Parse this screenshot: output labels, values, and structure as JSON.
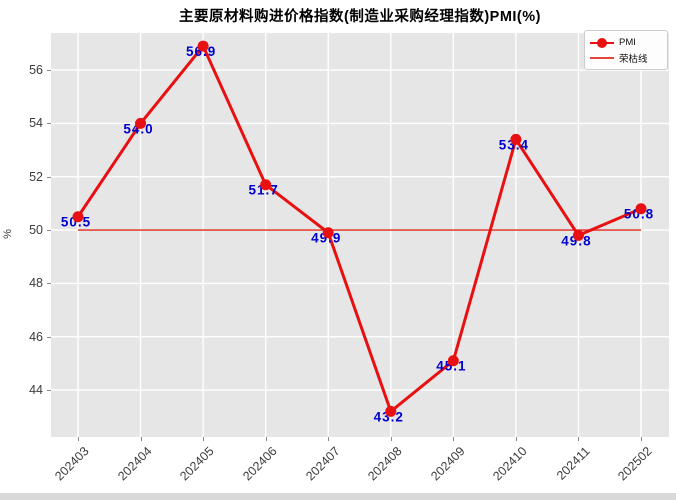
{
  "title": "主要原材料购进价格指数(制造业采购经理指数)PMI(%)",
  "y_axis_label": "%",
  "legend": {
    "pmi_label": "PMI",
    "reference_label": "荣枯线"
  },
  "colors": {
    "pmi_line": "#e81010",
    "reference_line": "#e3453c",
    "data_label": "#0000cc",
    "plot_background": "#e6e6e6",
    "gridline": "#ffffff",
    "tick_text": "#3c3c3c"
  },
  "chart_data": {
    "type": "line",
    "title": "主要原材料购进价格指数(制造业采购经理指数)PMI(%)",
    "categories": [
      "202403",
      "202404",
      "202405",
      "202406",
      "202407",
      "202408",
      "202409",
      "202410",
      "202411",
      "202502"
    ],
    "series": [
      {
        "name": "PMI",
        "values": [
          50.5,
          54.0,
          56.9,
          51.7,
          49.9,
          43.2,
          45.1,
          53.4,
          49.8,
          50.8
        ],
        "marker": "circle"
      }
    ],
    "reference_line": {
      "name": "荣枯线",
      "value": 50
    },
    "data_labels": [
      "50.5",
      "54.0",
      "56.9",
      "51.7",
      "49.9",
      "43.2",
      "45.1",
      "53.4",
      "49.8",
      "50.8"
    ],
    "xlabel": "",
    "ylabel": "%",
    "yticks": [
      44,
      46,
      48,
      50,
      52,
      54,
      56
    ],
    "ylim": [
      42.24,
      57.39
    ],
    "grid": true,
    "legend_position": "upper right"
  }
}
